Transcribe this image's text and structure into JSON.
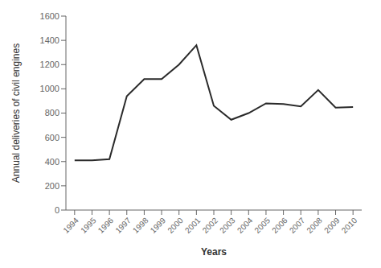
{
  "chart_data": {
    "type": "line",
    "x": [
      1994,
      1995,
      1996,
      1997,
      1998,
      1999,
      2000,
      2001,
      2002,
      2003,
      2004,
      2005,
      2006,
      2007,
      2008,
      2009,
      2010
    ],
    "values": [
      410,
      410,
      420,
      940,
      1080,
      1080,
      1200,
      1360,
      860,
      745,
      800,
      880,
      875,
      855,
      990,
      845,
      850
    ],
    "xlabel": "Years",
    "ylabel": "Annual deliveries of civil engines",
    "xlim": [
      1993.5,
      2010.5
    ],
    "ylim": [
      0,
      1600
    ],
    "xticks": [
      1994,
      1995,
      1996,
      1997,
      1998,
      1999,
      2000,
      2001,
      2002,
      2003,
      2004,
      2005,
      2006,
      2007,
      2008,
      2009,
      2010
    ],
    "yticks": [
      0,
      200,
      400,
      600,
      800,
      1000,
      1200,
      1400,
      1600
    ],
    "color": "#2a2a2a",
    "grid": false
  }
}
